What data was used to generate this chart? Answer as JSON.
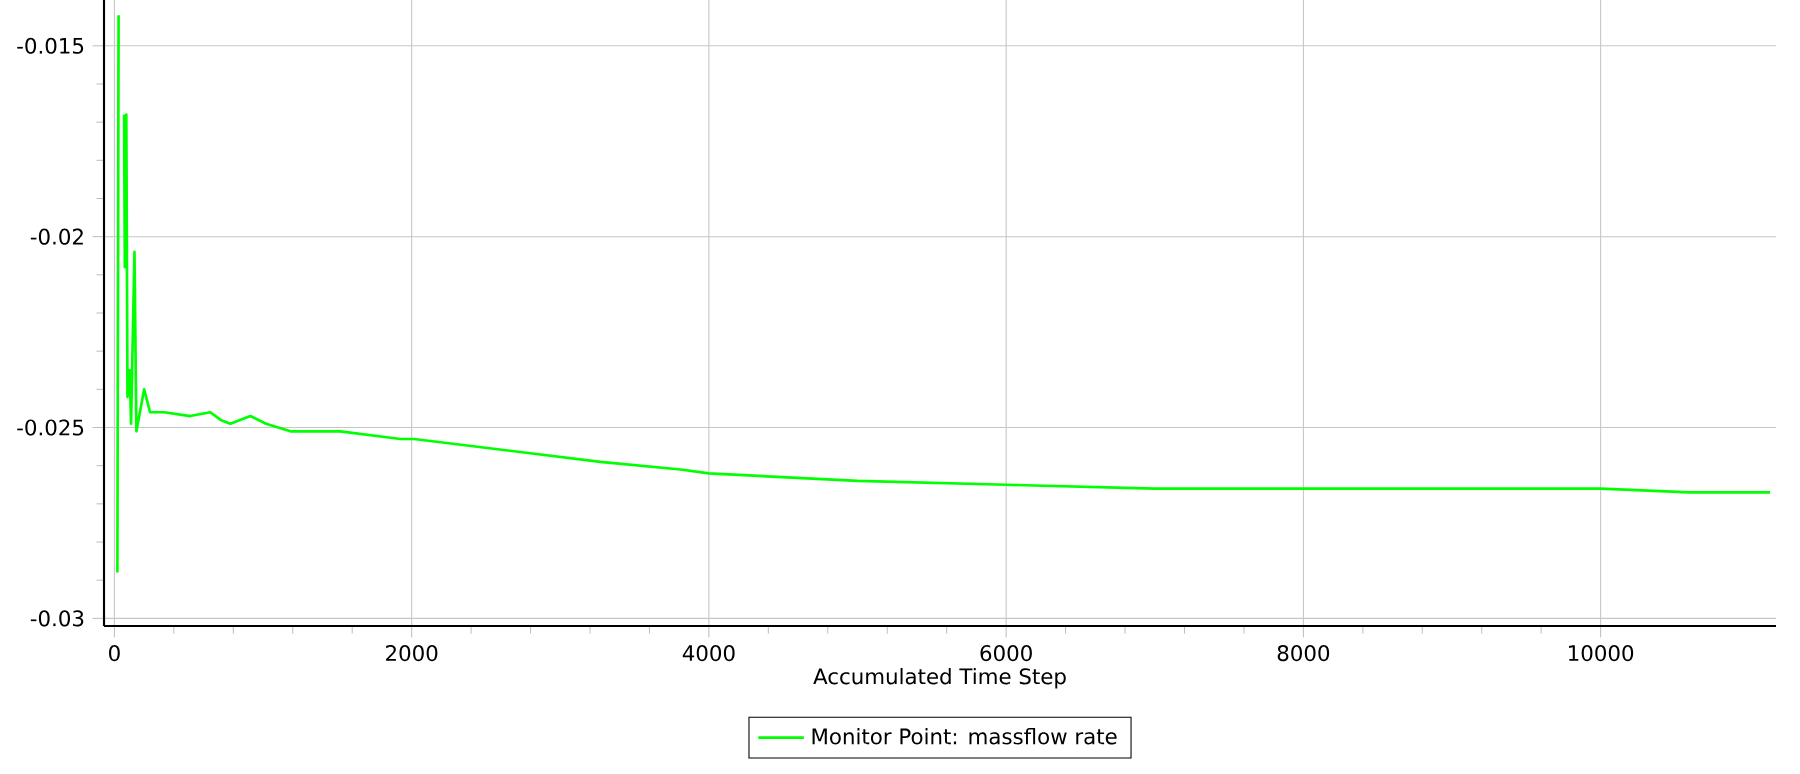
{
  "chart_data": {
    "type": "line",
    "xlabel": "Accumulated Time Step",
    "xlim": [
      -70,
      11180
    ],
    "ylim": [
      -0.0302,
      -0.0138
    ],
    "xticks": [
      0,
      2000,
      4000,
      6000,
      8000,
      10000
    ],
    "yticks": [
      -0.03,
      -0.025,
      -0.02,
      -0.015
    ],
    "grid": true,
    "legend": "bottom",
    "marker": "none",
    "line_style": "solid",
    "series": [
      {
        "name": "Monitor Point: massflow rate",
        "color": "#00ff00",
        "x": [
          20,
          28,
          55,
          65,
          70,
          80,
          88,
          103,
          112,
          135,
          148,
          200,
          240,
          336,
          510,
          645,
          715,
          780,
          915,
          1020,
          1185,
          1520,
          1925,
          2015,
          3270,
          3810,
          4000,
          5000,
          6000,
          7000,
          8000,
          10000,
          10600,
          11140
        ],
        "values": [
          -0.0288,
          -0.0142,
          null,
          -0.0168,
          -0.0208,
          -0.0168,
          -0.0242,
          -0.0235,
          -0.0249,
          -0.0204,
          -0.0251,
          -0.024,
          -0.0246,
          -0.0246,
          -0.0247,
          -0.0246,
          -0.0248,
          -0.0249,
          -0.0247,
          -0.0249,
          -0.0251,
          -0.0251,
          -0.0253,
          -0.0253,
          -0.0259,
          -0.0261,
          -0.0262,
          -0.0264,
          -0.0265,
          -0.0266,
          -0.0266,
          -0.0266,
          -0.0267,
          -0.0267
        ]
      }
    ]
  }
}
